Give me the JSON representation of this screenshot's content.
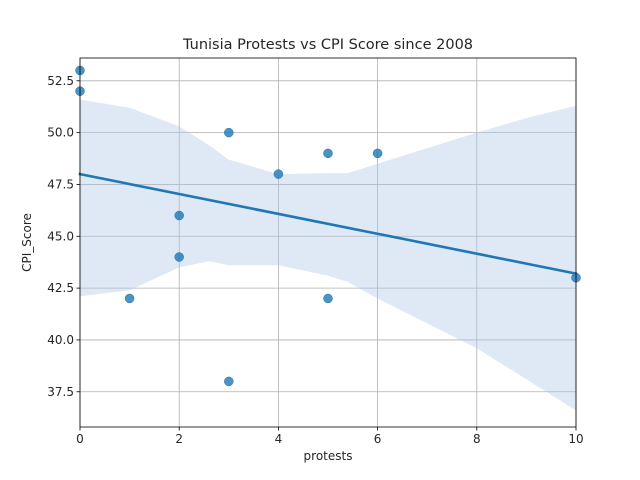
{
  "chart_data": {
    "type": "scatter",
    "title": "Tunisia Protests vs CPI Score since 2008",
    "xlabel": "protests",
    "ylabel": "CPI_Score",
    "xlim": [
      0,
      10
    ],
    "ylim": [
      35.8,
      53.6
    ],
    "xticks": [
      0,
      2,
      4,
      6,
      8,
      10
    ],
    "yticks": [
      37.5,
      40.0,
      42.5,
      45.0,
      47.5,
      50.0,
      52.5
    ],
    "ytick_labels": [
      "37.5",
      "40.0",
      "42.5",
      "45.0",
      "47.5",
      "50.0",
      "52.5"
    ],
    "grid": true,
    "points": [
      {
        "x": 0,
        "y": 53
      },
      {
        "x": 0,
        "y": 52
      },
      {
        "x": 1,
        "y": 42
      },
      {
        "x": 2,
        "y": 46
      },
      {
        "x": 2,
        "y": 44
      },
      {
        "x": 3,
        "y": 50
      },
      {
        "x": 3,
        "y": 38
      },
      {
        "x": 4,
        "y": 48
      },
      {
        "x": 5,
        "y": 49
      },
      {
        "x": 5,
        "y": 42
      },
      {
        "x": 6,
        "y": 49
      },
      {
        "x": 10,
        "y": 43
      }
    ],
    "regression": {
      "x": [
        0,
        10
      ],
      "y": [
        48.0,
        43.2
      ]
    },
    "confidence_band": {
      "x": [
        0,
        1,
        2,
        2.6,
        3,
        4,
        5,
        5.4,
        6,
        8,
        9,
        10
      ],
      "upper": [
        51.6,
        51.2,
        50.3,
        49.4,
        48.7,
        48.0,
        48.05,
        48.05,
        48.5,
        50.0,
        50.7,
        51.3
      ],
      "lower": [
        42.1,
        42.4,
        43.5,
        43.8,
        43.6,
        43.6,
        43.1,
        42.8,
        42.0,
        39.6,
        38.1,
        36.6
      ]
    },
    "colors": {
      "points": "#1f77b4",
      "line": "#1f77b4",
      "band": "#aec7e8",
      "grid": "#b0b0b0",
      "axes": "#000000"
    }
  }
}
